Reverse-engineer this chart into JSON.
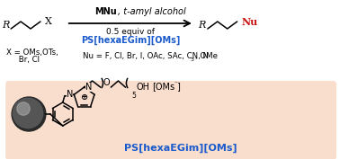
{
  "background_color": "#ffffff",
  "salmon_color": "#f9dece",
  "blue_color": "#1a5acc",
  "red_color": "#cc1111",
  "black_color": "#000000",
  "arrow_above1_bold": "MNu",
  "arrow_above1_normal": ", t-amyl alcohol",
  "arrow_below1": "0.5 equiv of",
  "arrow_below2": "PS[hexaEGim][OMs]",
  "x_line1": "X = OMs,OTs,",
  "x_line2": "     Br, Cl",
  "nu_line": "Nu = F, Cl, Br, I, OAc, SAc, CN, N",
  "nu_sub": "3",
  "nu_end": ", OMe",
  "bottom_label": "PS[hexaEGim][OMs]",
  "oms_label": "[OMs",
  "oms_super": "⁻",
  "oms_close": "]",
  "oh_label": "OH",
  "five_sub": "5"
}
